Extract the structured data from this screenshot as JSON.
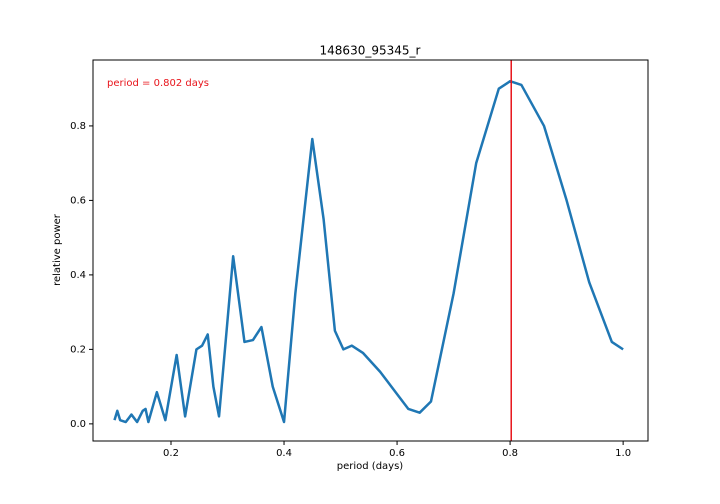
{
  "chart_data": {
    "type": "line",
    "title": "148630_95345_r",
    "xlabel": "period (days)",
    "ylabel": "relative power",
    "annotation": "period = 0.802 days",
    "vline": 0.802,
    "vline_color": "#e8141b",
    "series": [
      {
        "name": "power",
        "color": "#1f77b4",
        "x": [
          0.1,
          0.105,
          0.11,
          0.12,
          0.13,
          0.14,
          0.15,
          0.155,
          0.16,
          0.175,
          0.19,
          0.21,
          0.225,
          0.245,
          0.255,
          0.265,
          0.275,
          0.285,
          0.31,
          0.33,
          0.345,
          0.36,
          0.38,
          0.4,
          0.42,
          0.45,
          0.47,
          0.49,
          0.505,
          0.52,
          0.54,
          0.57,
          0.6,
          0.62,
          0.64,
          0.66,
          0.7,
          0.74,
          0.78,
          0.8,
          0.82,
          0.86,
          0.9,
          0.94,
          0.98,
          1.0
        ],
        "values": [
          0.01,
          0.035,
          0.01,
          0.005,
          0.025,
          0.005,
          0.035,
          0.04,
          0.005,
          0.085,
          0.01,
          0.185,
          0.02,
          0.2,
          0.21,
          0.24,
          0.1,
          0.02,
          0.45,
          0.22,
          0.225,
          0.26,
          0.1,
          0.005,
          0.35,
          0.765,
          0.55,
          0.25,
          0.2,
          0.21,
          0.19,
          0.14,
          0.08,
          0.04,
          0.03,
          0.06,
          0.35,
          0.7,
          0.9,
          0.92,
          0.91,
          0.8,
          0.6,
          0.38,
          0.22,
          0.2
        ]
      }
    ],
    "xlim": [
      0.062,
      1.044
    ],
    "ylim": [
      -0.046,
      0.977
    ],
    "xticks": [
      0.2,
      0.4,
      0.6,
      0.8,
      {
        "value": 1.0,
        "label": "1.0"
      }
    ],
    "yticks": [
      {
        "value": 0.0,
        "label": "0.0"
      },
      0.2,
      0.4,
      0.6,
      0.8
    ]
  }
}
